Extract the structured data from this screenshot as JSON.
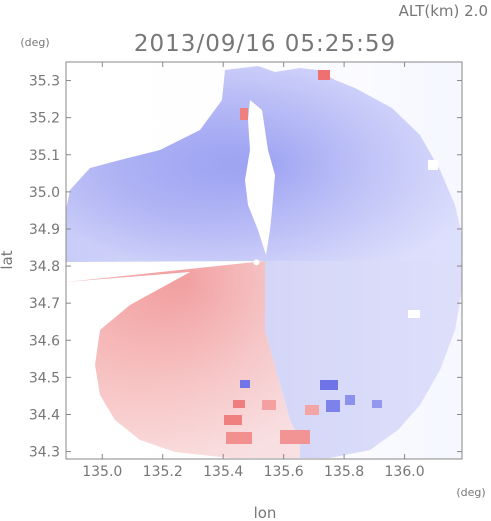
{
  "header": {
    "altitude": "ALT(km) 2.0",
    "timestamp": "2013/09/16 05:25:59"
  },
  "chart_data": {
    "type": "heatmap",
    "title": "2013/09/16 05:25:59",
    "annotation": "ALT(km) 2.0",
    "xlabel": "lon",
    "ylabel": "lat",
    "x_unit": "(deg)",
    "y_unit": "(deg)",
    "xlim": [
      134.88,
      136.19
    ],
    "ylim": [
      34.28,
      35.35
    ],
    "x_ticks": [
      "135.0",
      "135.2",
      "135.4",
      "135.6",
      "135.8",
      "136.0"
    ],
    "y_ticks": [
      "34.3",
      "34.4",
      "34.5",
      "34.6",
      "34.7",
      "34.8",
      "34.9",
      "35.0",
      "35.1",
      "35.2",
      "35.3"
    ],
    "radar_center": {
      "lon": 135.51,
      "lat": 34.81
    },
    "colors": {
      "approaching": "#8c92f0",
      "receding": "#f07a7a",
      "frame": "#888888"
    },
    "grid": false
  }
}
